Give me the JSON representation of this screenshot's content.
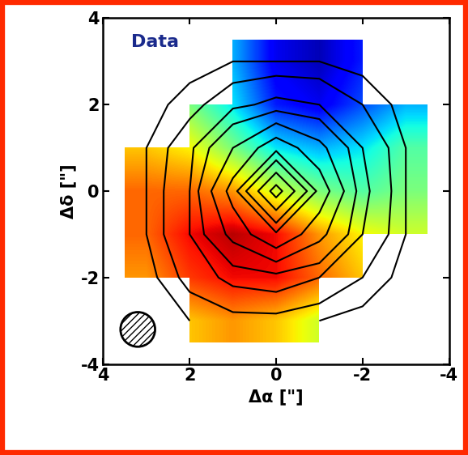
{
  "chart_data": {
    "type": "heatmap",
    "annotation": "Data",
    "x_label": "Δα [\"]",
    "y_label": "Δδ [\"]",
    "x": [
      3,
      2,
      1,
      0,
      -1,
      -2,
      -3
    ],
    "y": [
      3,
      2,
      1,
      0,
      -1,
      -2,
      -3
    ],
    "cells": [
      [
        null,
        null,
        -40,
        -80,
        -90,
        -70,
        null
      ],
      [
        null,
        0,
        -30,
        -70,
        -80,
        -60,
        -40
      ],
      [
        40,
        30,
        0,
        -30,
        -40,
        -30,
        -10
      ],
      [
        60,
        60,
        50,
        20,
        0,
        -10,
        0
      ],
      [
        60,
        80,
        90,
        80,
        50,
        30,
        20
      ],
      [
        50,
        70,
        80,
        80,
        60,
        40,
        null
      ],
      [
        null,
        40,
        50,
        40,
        20,
        null,
        null
      ]
    ],
    "color_range": [
      -100,
      100
    ],
    "contour_cells": [
      [
        1,
        2,
        3,
        3,
        3,
        2,
        1
      ],
      [
        2,
        4,
        7,
        9,
        8,
        5,
        2
      ],
      [
        3,
        7,
        18,
        30,
        20,
        8,
        3
      ],
      [
        3,
        8,
        28,
        100,
        30,
        9,
        3
      ],
      [
        3,
        8,
        20,
        32,
        20,
        8,
        3
      ],
      [
        2,
        6,
        9,
        10,
        8,
        5,
        2
      ],
      [
        1,
        3,
        4,
        4,
        3,
        2,
        1
      ]
    ],
    "contour_levels": [
      3,
      5,
      8,
      12,
      18,
      25,
      35,
      50,
      70,
      90
    ],
    "xlim": [
      4,
      -4
    ],
    "ylim": [
      -4,
      4
    ],
    "xticks": [
      4,
      2,
      0,
      -2,
      -4
    ],
    "yticks": [
      -4,
      -2,
      0,
      2,
      4
    ]
  }
}
